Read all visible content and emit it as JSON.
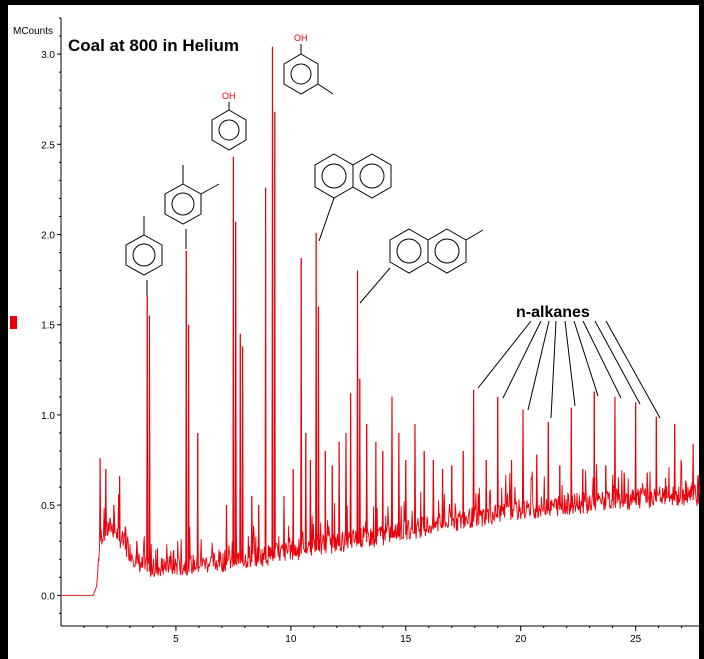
{
  "chart_data": {
    "type": "line",
    "title": "Coal at 800 in Helium",
    "ylabel": "MCounts",
    "xlabel": "",
    "xlim": [
      0,
      27.8
    ],
    "ylim": [
      -0.17,
      3.2
    ],
    "x_ticks": [
      "5",
      "10",
      "15",
      "20",
      "25"
    ],
    "y_ticks": [
      "0.0",
      "0.5",
      "1.0",
      "1.5",
      "2.0",
      "2.5",
      "3.0"
    ],
    "series": [
      {
        "color": "#e8000a",
        "baseline": [
          [
            0,
            0
          ],
          [
            1.4,
            0
          ],
          [
            1.55,
            0.05
          ],
          [
            1.7,
            0.3
          ],
          [
            2.2,
            0.36
          ],
          [
            3,
            0.22
          ],
          [
            3.6,
            0.13
          ],
          [
            5,
            0.14
          ],
          [
            6,
            0.15
          ],
          [
            8,
            0.18
          ],
          [
            10,
            0.22
          ],
          [
            12,
            0.27
          ],
          [
            14,
            0.31
          ],
          [
            16,
            0.36
          ],
          [
            18,
            0.41
          ],
          [
            20,
            0.45
          ],
          [
            22,
            0.48
          ],
          [
            24,
            0.5
          ],
          [
            26,
            0.52
          ],
          [
            27.8,
            0.53
          ]
        ],
        "peaks": [
          [
            1.7,
            0.76
          ],
          [
            1.95,
            0.7
          ],
          [
            2.3,
            0.5
          ],
          [
            2.55,
            0.66
          ],
          [
            2.8,
            0.38
          ],
          [
            3.3,
            0.3
          ],
          [
            3.75,
            1.66
          ],
          [
            3.85,
            1.55
          ],
          [
            4.4,
            0.2
          ],
          [
            4.9,
            0.25
          ],
          [
            5.45,
            1.91
          ],
          [
            5.55,
            1.5
          ],
          [
            5.95,
            0.9
          ],
          [
            7.2,
            0.5
          ],
          [
            7.5,
            2.43
          ],
          [
            7.6,
            2.07
          ],
          [
            7.8,
            1.45
          ],
          [
            7.9,
            1.38
          ],
          [
            8.3,
            0.55
          ],
          [
            8.6,
            0.5
          ],
          [
            8.9,
            2.26
          ],
          [
            9.2,
            3.04
          ],
          [
            9.3,
            2.68
          ],
          [
            9.7,
            0.55
          ],
          [
            10.1,
            0.7
          ],
          [
            10.45,
            1.87
          ],
          [
            10.65,
            0.9
          ],
          [
            10.85,
            0.75
          ],
          [
            11.1,
            2.01
          ],
          [
            11.2,
            1.6
          ],
          [
            11.5,
            0.8
          ],
          [
            11.8,
            0.72
          ],
          [
            12.1,
            0.85
          ],
          [
            12.4,
            0.9
          ],
          [
            12.6,
            1.12
          ],
          [
            12.9,
            1.8
          ],
          [
            13.0,
            1.2
          ],
          [
            13.3,
            0.95
          ],
          [
            13.7,
            0.85
          ],
          [
            14.0,
            0.8
          ],
          [
            14.4,
            1.1
          ],
          [
            14.7,
            0.9
          ],
          [
            15.0,
            0.75
          ],
          [
            15.4,
            0.95
          ],
          [
            15.8,
            0.8
          ],
          [
            16.2,
            0.75
          ],
          [
            16.6,
            0.7
          ],
          [
            17.0,
            0.72
          ],
          [
            17.5,
            0.8
          ],
          [
            17.95,
            1.14
          ],
          [
            18.5,
            0.75
          ],
          [
            19.0,
            1.1
          ],
          [
            19.6,
            0.75
          ],
          [
            20.1,
            1.03
          ],
          [
            20.7,
            0.78
          ],
          [
            21.2,
            0.96
          ],
          [
            21.7,
            0.72
          ],
          [
            22.2,
            1.04
          ],
          [
            22.7,
            0.7
          ],
          [
            23.2,
            1.13
          ],
          [
            23.7,
            0.72
          ],
          [
            24.1,
            1.1
          ],
          [
            24.5,
            0.68
          ],
          [
            25.0,
            1.07
          ],
          [
            25.5,
            0.68
          ],
          [
            25.9,
            0.99
          ],
          [
            26.3,
            0.65
          ],
          [
            26.7,
            0.95
          ],
          [
            27.2,
            0.62
          ],
          [
            27.5,
            0.84
          ]
        ]
      }
    ],
    "annotations": [
      {
        "text": "n-alkanes"
      },
      {
        "text": "OH"
      },
      {
        "text": "OH"
      }
    ],
    "grid": false,
    "legend": "none"
  }
}
